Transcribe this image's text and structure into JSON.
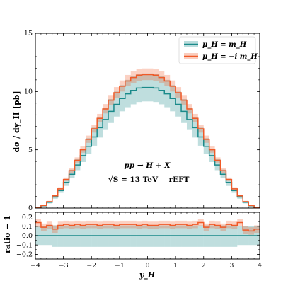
{
  "chart_data": [
    {
      "type": "line",
      "panel": "main",
      "ylabel": "dσ / dy_H   [pb]",
      "ylim": [
        0,
        15
      ],
      "xlim": [
        -4,
        4
      ],
      "xticks": [
        "−4",
        "−3",
        "−2",
        "−1",
        "0",
        "1",
        "2",
        "3",
        "4"
      ],
      "yticks": [
        "0",
        "5",
        "10",
        "15"
      ],
      "x_edges": [
        -4.0,
        -3.8,
        -3.6,
        -3.4,
        -3.2,
        -3.0,
        -2.8,
        -2.6,
        -2.4,
        -2.2,
        -2.0,
        -1.8,
        -1.6,
        -1.4,
        -1.2,
        -1.0,
        -0.8,
        -0.6,
        -0.4,
        -0.2,
        0.0,
        0.2,
        0.4,
        0.6,
        0.8,
        1.0,
        1.2,
        1.4,
        1.6,
        1.8,
        2.0,
        2.2,
        2.4,
        2.6,
        2.8,
        3.0,
        3.2,
        3.4,
        3.6,
        3.8,
        4.0
      ],
      "series": [
        {
          "name": "μ_H = m_H",
          "color": "#1a8a8a",
          "values": [
            0.05,
            0.2,
            0.5,
            0.95,
            1.5,
            2.2,
            2.9,
            3.7,
            4.5,
            5.3,
            6.1,
            6.9,
            7.6,
            8.3,
            8.9,
            9.4,
            9.8,
            10.1,
            10.3,
            10.35,
            10.35,
            10.3,
            10.1,
            9.8,
            9.4,
            8.9,
            8.3,
            7.6,
            6.9,
            6.1,
            5.3,
            4.5,
            3.7,
            2.9,
            2.2,
            1.5,
            0.95,
            0.5,
            0.2,
            0.05
          ],
          "band_lower": [
            0.0,
            0.15,
            0.4,
            0.8,
            1.3,
            1.9,
            2.55,
            3.25,
            3.95,
            4.65,
            5.35,
            6.05,
            6.7,
            7.3,
            7.85,
            8.3,
            8.65,
            8.9,
            9.1,
            9.15,
            9.15,
            9.1,
            8.9,
            8.65,
            8.3,
            7.85,
            7.3,
            6.7,
            6.05,
            5.35,
            4.65,
            3.95,
            3.25,
            2.55,
            1.9,
            1.3,
            0.8,
            0.4,
            0.15,
            0.0
          ],
          "band_upper": [
            0.1,
            0.25,
            0.6,
            1.1,
            1.7,
            2.5,
            3.3,
            4.2,
            5.1,
            6.0,
            6.9,
            7.8,
            8.6,
            9.35,
            10.0,
            10.55,
            11.0,
            11.3,
            11.5,
            11.55,
            11.55,
            11.5,
            11.3,
            11.0,
            10.55,
            10.0,
            9.35,
            8.6,
            7.8,
            6.9,
            6.0,
            5.1,
            4.2,
            3.3,
            2.5,
            1.7,
            1.1,
            0.6,
            0.25,
            0.1
          ]
        },
        {
          "name": "μ_H = −i m_H",
          "color": "#f05a28",
          "values": [
            0.06,
            0.22,
            0.55,
            1.05,
            1.65,
            2.45,
            3.2,
            4.1,
            5.0,
            5.9,
            6.8,
            7.7,
            8.5,
            9.25,
            9.9,
            10.45,
            10.9,
            11.2,
            11.4,
            11.45,
            11.45,
            11.4,
            11.2,
            10.9,
            10.45,
            9.9,
            9.25,
            8.5,
            7.7,
            6.8,
            5.9,
            5.0,
            4.1,
            3.2,
            2.45,
            1.65,
            1.05,
            0.55,
            0.22,
            0.06
          ],
          "band_lower": [
            0.0,
            0.19,
            0.5,
            0.98,
            1.55,
            2.3,
            3.02,
            3.9,
            4.75,
            5.6,
            6.48,
            7.35,
            8.12,
            8.85,
            9.48,
            10.0,
            10.45,
            10.75,
            10.93,
            10.98,
            10.98,
            10.93,
            10.75,
            10.45,
            10.0,
            9.48,
            8.85,
            8.12,
            7.35,
            6.48,
            5.6,
            4.75,
            3.9,
            3.02,
            2.3,
            1.55,
            0.98,
            0.5,
            0.19,
            0.0
          ],
          "band_upper": [
            0.12,
            0.26,
            0.62,
            1.14,
            1.78,
            2.62,
            3.4,
            4.35,
            5.28,
            6.22,
            7.15,
            8.08,
            8.92,
            9.7,
            10.38,
            10.95,
            11.42,
            11.72,
            11.93,
            11.98,
            11.98,
            11.93,
            11.72,
            11.42,
            10.95,
            10.38,
            9.7,
            8.92,
            8.08,
            7.15,
            6.22,
            5.28,
            4.35,
            3.4,
            2.62,
            1.78,
            1.14,
            0.62,
            0.26,
            0.12
          ]
        }
      ],
      "legend": {
        "placement": "top-right"
      },
      "annotations": {
        "process": "pp → H + X",
        "energy": "√S = 13 TeV",
        "tag": "rEFT"
      },
      "grid": false
    },
    {
      "type": "line",
      "panel": "ratio",
      "xlabel": "y_H",
      "ylabel": "ratio − 1",
      "xlim": [
        -4,
        4
      ],
      "ylim": [
        -0.25,
        0.25
      ],
      "yticks": [
        "−0.2",
        "−0.1",
        "0.0",
        "0.1",
        "0.2"
      ],
      "series": [
        {
          "name": "μ_H = m_H",
          "color": "#1a8a8a",
          "values": [
            0.0,
            0.0,
            0.0,
            0.0,
            0.0,
            0.0,
            0.0,
            0.0,
            0.0,
            0.0,
            0.0,
            0.0,
            0.0,
            0.0,
            0.0,
            0.0,
            0.0,
            0.0,
            0.0,
            0.0,
            0.0,
            0.0,
            0.0,
            0.0,
            0.0,
            0.0,
            0.0,
            0.0,
            0.0,
            0.0,
            0.0,
            0.0,
            0.0,
            0.0,
            0.0,
            0.0,
            0.0,
            0.0,
            0.0,
            0.0
          ],
          "band_lower": [
            -0.1,
            -0.1,
            -0.1,
            -0.12,
            -0.12,
            -0.12,
            -0.12,
            -0.12,
            -0.12,
            -0.12,
            -0.12,
            -0.12,
            -0.12,
            -0.12,
            -0.12,
            -0.12,
            -0.12,
            -0.12,
            -0.12,
            -0.12,
            -0.12,
            -0.12,
            -0.12,
            -0.12,
            -0.12,
            -0.12,
            -0.12,
            -0.12,
            -0.12,
            -0.12,
            -0.12,
            -0.12,
            -0.12,
            -0.12,
            -0.12,
            -0.12,
            -0.1,
            -0.1,
            -0.1,
            -0.1
          ],
          "band_upper": [
            0.1,
            0.1,
            0.1,
            0.11,
            0.11,
            0.11,
            0.11,
            0.11,
            0.11,
            0.11,
            0.11,
            0.11,
            0.11,
            0.11,
            0.11,
            0.11,
            0.11,
            0.11,
            0.11,
            0.11,
            0.11,
            0.11,
            0.11,
            0.11,
            0.11,
            0.11,
            0.11,
            0.11,
            0.11,
            0.11,
            0.11,
            0.11,
            0.11,
            0.11,
            0.11,
            0.11,
            0.1,
            0.1,
            0.1,
            0.1
          ]
        },
        {
          "name": "μ_H = −i m_H",
          "color": "#f05a28",
          "values": [
            0.14,
            0.09,
            0.11,
            0.07,
            0.11,
            0.12,
            0.11,
            0.12,
            0.11,
            0.12,
            0.12,
            0.11,
            0.12,
            0.12,
            0.11,
            0.12,
            0.12,
            0.12,
            0.11,
            0.12,
            0.11,
            0.11,
            0.12,
            0.12,
            0.11,
            0.12,
            0.12,
            0.11,
            0.12,
            0.14,
            0.09,
            0.12,
            0.11,
            0.09,
            0.12,
            0.11,
            0.14,
            0.06,
            0.05,
            0.07
          ],
          "band_lower": [
            0.09,
            0.05,
            0.07,
            0.03,
            0.07,
            0.08,
            0.07,
            0.08,
            0.07,
            0.08,
            0.08,
            0.07,
            0.08,
            0.08,
            0.07,
            0.08,
            0.08,
            0.08,
            0.07,
            0.08,
            0.07,
            0.07,
            0.08,
            0.08,
            0.07,
            0.08,
            0.08,
            0.07,
            0.08,
            0.1,
            0.05,
            0.08,
            0.07,
            0.05,
            0.08,
            0.07,
            0.1,
            0.02,
            0.01,
            0.03
          ],
          "band_upper": [
            0.18,
            0.13,
            0.15,
            0.11,
            0.15,
            0.16,
            0.15,
            0.16,
            0.15,
            0.16,
            0.16,
            0.15,
            0.16,
            0.16,
            0.15,
            0.16,
            0.16,
            0.16,
            0.15,
            0.16,
            0.15,
            0.15,
            0.16,
            0.16,
            0.15,
            0.16,
            0.16,
            0.15,
            0.16,
            0.18,
            0.13,
            0.16,
            0.15,
            0.13,
            0.16,
            0.15,
            0.18,
            0.1,
            0.09,
            0.11
          ]
        }
      ],
      "grid": false
    }
  ]
}
